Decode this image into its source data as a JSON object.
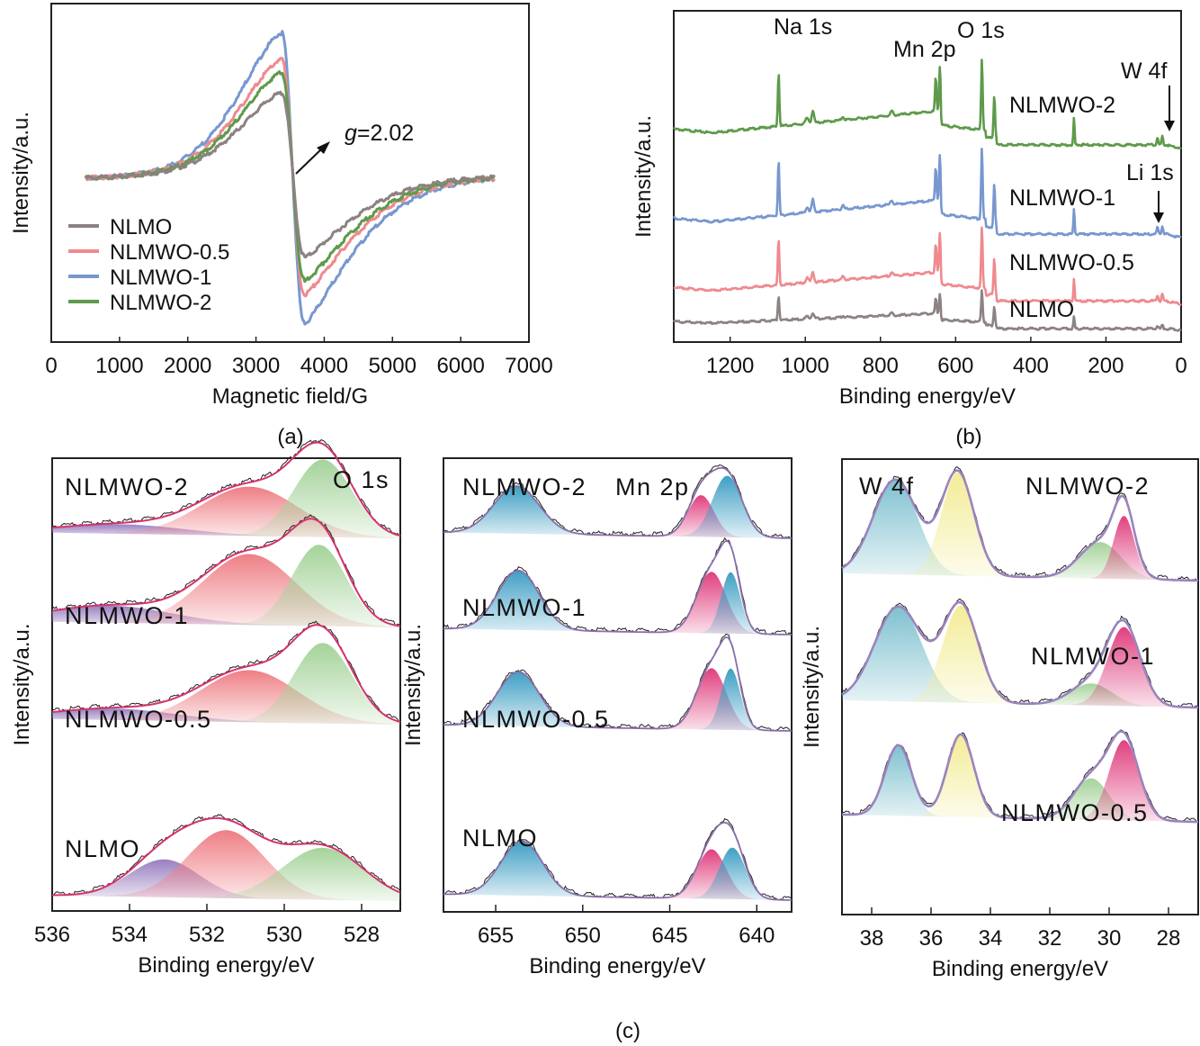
{
  "chart_data": [
    {
      "id": "a",
      "panel_label": "(a)",
      "type": "line",
      "title": "",
      "xlabel": "Magnetic field/G",
      "ylabel": "Intensity/a.u.",
      "xlim": [
        0,
        7000
      ],
      "xticks": [
        0,
        1000,
        2000,
        3000,
        4000,
        5000,
        6000,
        7000
      ],
      "xtick_labels": [
        "0",
        "1000",
        "2000",
        "3000",
        "4000",
        "5000",
        "6000",
        "7000"
      ],
      "ylim": [
        -1.25,
        1.25
      ],
      "grid": false,
      "legend": {
        "placement": "lower-left"
      },
      "annotation": {
        "prefix": "g",
        "text": "=2.02",
        "arrow": true
      },
      "x_start": 500,
      "x_end": 6500,
      "series": [
        {
          "name": "NLMO",
          "color": "#8c8282",
          "peak_x": 3380,
          "trough_x": 3700,
          "peak": 0.6,
          "trough": -0.62
        },
        {
          "name": "NLMWO-0.5",
          "color": "#ee8a8e",
          "peak_x": 3380,
          "trough_x": 3700,
          "peak": 0.85,
          "trough": -0.9
        },
        {
          "name": "NLMWO-1",
          "color": "#7897cf",
          "peak_x": 3380,
          "trough_x": 3700,
          "peak": 1.05,
          "trough": -1.12
        },
        {
          "name": "NLMWO-2",
          "color": "#5e9a4a",
          "peak_x": 3380,
          "trough_x": 3700,
          "peak": 0.75,
          "trough": -0.8
        }
      ]
    },
    {
      "id": "b",
      "panel_label": "(b)",
      "type": "line",
      "title": "",
      "xlabel": "Binding energy/eV",
      "ylabel": "Intensity/a.u.",
      "xlim": [
        1350,
        0
      ],
      "xticks": [
        1200,
        1000,
        800,
        600,
        400,
        200,
        0
      ],
      "xtick_labels": [
        "1200",
        "1000",
        "800",
        "600",
        "400",
        "200",
        "0"
      ],
      "grid": false,
      "peak_annotations": [
        {
          "text": "Na 1s",
          "energy": 1071
        },
        {
          "text": "Mn 2p",
          "energy": 642
        },
        {
          "text": "O 1s",
          "energy": 530
        },
        {
          "text": "W 4f",
          "energy": 35,
          "arrow": true
        },
        {
          "text": "Li 1s",
          "energy": 55,
          "arrow": true
        }
      ],
      "series": [
        {
          "name": "NLMWO-2",
          "color": "#5e9a4a",
          "offset": 3,
          "scale": 1.0
        },
        {
          "name": "NLMWO-1",
          "color": "#7897cf",
          "offset": 2,
          "scale": 1.0
        },
        {
          "name": "NLMWO-0.5",
          "color": "#ee8a8e",
          "offset": 1,
          "scale": 0.85
        },
        {
          "name": "NLMO",
          "color": "#8c8282",
          "offset": 0,
          "scale": 0.45
        }
      ]
    },
    {
      "id": "c-o1s",
      "panel_label": "(c)",
      "type": "area",
      "title": "O 1s",
      "xlabel": "Binding energy/eV",
      "ylabel": "Intensity/a.u.",
      "xlim": [
        536,
        527
      ],
      "xticks": [
        536,
        534,
        532,
        530,
        528
      ],
      "xtick_labels": [
        "536",
        "534",
        "532",
        "530",
        "528"
      ],
      "grid": false,
      "envelope_color": "#d6336e",
      "component_colors": [
        "#9a7fc0",
        "#ee7f85",
        "#a5d39a"
      ],
      "spectra": [
        {
          "name": "NLMWO-2",
          "components": [
            {
              "center": 534.2,
              "height": 0.1,
              "width": 1.6
            },
            {
              "center": 530.9,
              "height": 0.52,
              "width": 1.25
            },
            {
              "center": 529.0,
              "height": 0.82,
              "width": 0.75
            }
          ]
        },
        {
          "name": "NLMWO-1",
          "components": [
            {
              "center": 534.5,
              "height": 0.18,
              "width": 1.6
            },
            {
              "center": 530.9,
              "height": 0.75,
              "width": 1.2
            },
            {
              "center": 529.1,
              "height": 0.86,
              "width": 0.7
            }
          ]
        },
        {
          "name": "NLMWO-0.5",
          "components": [
            {
              "center": 534.4,
              "height": 0.12,
              "width": 1.6
            },
            {
              "center": 530.9,
              "height": 0.55,
              "width": 1.25
            },
            {
              "center": 529.0,
              "height": 0.85,
              "width": 0.75
            }
          ]
        },
        {
          "name": "NLMO",
          "components": [
            {
              "center": 533.1,
              "height": 0.4,
              "width": 0.9
            },
            {
              "center": 531.5,
              "height": 0.72,
              "width": 1.0
            },
            {
              "center": 529.0,
              "height": 0.55,
              "width": 1.05
            }
          ]
        }
      ]
    },
    {
      "id": "c-mn2p",
      "panel_label": "(c)",
      "type": "area",
      "title": "Mn 2p",
      "xlabel": "Binding energy/eV",
      "ylabel": "Intensity/a.u.",
      "xlim": [
        658,
        638
      ],
      "xticks": [
        655,
        650,
        645,
        640
      ],
      "xtick_labels": [
        "655",
        "650",
        "645",
        "640"
      ],
      "grid": false,
      "envelope_color": "#8a6fa8",
      "component_colors": [
        "#e0407f",
        "#3f9fc4"
      ],
      "spectra": [
        {
          "name": "NLMWO-2",
          "components": [
            {
              "center": 653.8,
              "height": 0.48,
              "width": 1.3,
              "color_index": 1
            },
            {
              "center": 643.2,
              "height": 0.42,
              "width": 0.75,
              "color_index": 0
            },
            {
              "center": 641.7,
              "height": 0.62,
              "width": 0.85,
              "color_index": 1
            }
          ]
        },
        {
          "name": "NLMWO-1",
          "components": [
            {
              "center": 653.7,
              "height": 0.6,
              "width": 1.2,
              "color_index": 1
            },
            {
              "center": 642.6,
              "height": 0.62,
              "width": 0.85,
              "color_index": 0
            },
            {
              "center": 641.5,
              "height": 0.62,
              "width": 0.55,
              "color_index": 1
            }
          ]
        },
        {
          "name": "NLMWO-0.5",
          "components": [
            {
              "center": 653.7,
              "height": 0.55,
              "width": 1.2,
              "color_index": 1
            },
            {
              "center": 642.6,
              "height": 0.62,
              "width": 0.85,
              "color_index": 0
            },
            {
              "center": 641.5,
              "height": 0.62,
              "width": 0.55,
              "color_index": 1
            }
          ]
        },
        {
          "name": "NLMO",
          "components": [
            {
              "center": 653.5,
              "height": 0.55,
              "width": 1.2,
              "color_index": 1
            },
            {
              "center": 642.6,
              "height": 0.5,
              "width": 0.85,
              "color_index": 0
            },
            {
              "center": 641.4,
              "height": 0.52,
              "width": 0.75,
              "color_index": 1
            }
          ]
        }
      ]
    },
    {
      "id": "c-w4f",
      "panel_label": "(c)",
      "type": "area",
      "title": "W 4f",
      "xlabel": "Binding energy/eV",
      "ylabel": "Intensity/a.u.",
      "xlim": [
        39,
        27
      ],
      "xticks": [
        38,
        36,
        34,
        32,
        30,
        28
      ],
      "xtick_labels": [
        "38",
        "36",
        "34",
        "32",
        "30",
        "28"
      ],
      "grid": false,
      "envelope_color": "#9b84bd",
      "component_colors": [
        "#7fc1cf",
        "#f3ec96",
        "#a5d39a",
        "#e0407f"
      ],
      "spectra": [
        {
          "name": "NLMWO-2",
          "components": [
            {
              "center": 37.2,
              "height": 0.78,
              "width": 0.75,
              "color_index": 0
            },
            {
              "center": 35.1,
              "height": 0.85,
              "width": 0.55,
              "color_index": 1
            },
            {
              "center": 30.3,
              "height": 0.3,
              "width": 0.7,
              "color_index": 2
            },
            {
              "center": 29.5,
              "height": 0.52,
              "width": 0.35,
              "color_index": 3
            }
          ]
        },
        {
          "name": "NLMWO-1",
          "components": [
            {
              "center": 37.1,
              "height": 0.78,
              "width": 0.8,
              "color_index": 0
            },
            {
              "center": 35.0,
              "height": 0.8,
              "width": 0.6,
              "color_index": 1
            },
            {
              "center": 30.6,
              "height": 0.18,
              "width": 0.7,
              "color_index": 2
            },
            {
              "center": 29.5,
              "height": 0.65,
              "width": 0.55,
              "color_index": 3
            }
          ]
        },
        {
          "name": "NLMWO-0.5",
          "components": [
            {
              "center": 37.1,
              "height": 0.58,
              "width": 0.45,
              "color_index": 0
            },
            {
              "center": 35.0,
              "height": 0.68,
              "width": 0.45,
              "color_index": 1
            },
            {
              "center": 30.6,
              "height": 0.34,
              "width": 0.6,
              "color_index": 2
            },
            {
              "center": 29.5,
              "height": 0.66,
              "width": 0.5,
              "color_index": 3
            }
          ]
        }
      ]
    }
  ],
  "caption": {
    "a": "(a)",
    "b": "(b)",
    "c": "(c)"
  }
}
